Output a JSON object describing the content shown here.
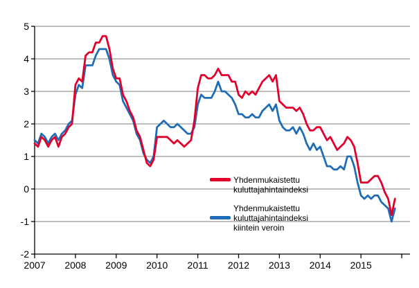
{
  "chart_data": {
    "type": "line",
    "title": "",
    "xlabel": "",
    "ylabel": "",
    "x_start": "2007-01",
    "x_end": "2015-11",
    "x_frequency": "monthly",
    "x_tick_labels": [
      "2007",
      "2008",
      "2009",
      "2010",
      "2011",
      "2012",
      "2013",
      "2014",
      "2015"
    ],
    "y_tick_labels": [
      "5",
      "4",
      "3",
      "2",
      "1",
      "0",
      "-1",
      "-2"
    ],
    "y_ticks": [
      5,
      4,
      3,
      2,
      1,
      0,
      -1,
      -2
    ],
    "ylim": [
      -2,
      5
    ],
    "grid": true,
    "gridline_color": "#7f7f7f",
    "axis_color": "#000000",
    "legend_position": "inside-lower-center",
    "series": [
      {
        "id": "hicp",
        "name": "Yhdenmukaistettu kuluttajahintaindeksi",
        "color": "#e2002b",
        "values": [
          1.4,
          1.3,
          1.6,
          1.5,
          1.3,
          1.5,
          1.6,
          1.3,
          1.6,
          1.7,
          1.9,
          2.0,
          3.2,
          3.4,
          3.3,
          4.1,
          4.2,
          4.2,
          4.5,
          4.5,
          4.7,
          4.7,
          4.3,
          3.7,
          3.4,
          3.4,
          2.9,
          2.7,
          2.4,
          2.2,
          1.8,
          1.6,
          1.2,
          0.8,
          0.7,
          0.9,
          1.6,
          1.6,
          1.6,
          1.6,
          1.5,
          1.4,
          1.5,
          1.4,
          1.3,
          1.4,
          1.5,
          2.1,
          3.1,
          3.5,
          3.5,
          3.4,
          3.4,
          3.5,
          3.7,
          3.5,
          3.5,
          3.5,
          3.3,
          3.3,
          2.9,
          2.8,
          3.0,
          2.9,
          3.0,
          2.9,
          3.1,
          3.3,
          3.4,
          3.5,
          3.3,
          3.5,
          2.7,
          2.6,
          2.5,
          2.5,
          2.5,
          2.4,
          2.5,
          2.3,
          2.0,
          1.8,
          1.8,
          1.9,
          1.9,
          1.7,
          1.5,
          1.6,
          1.4,
          1.2,
          1.3,
          1.4,
          1.6,
          1.5,
          1.3,
          0.8,
          0.2,
          0.2,
          0.2,
          0.3,
          0.4,
          0.4,
          0.2,
          -0.1,
          -0.3,
          -0.8,
          -0.3
        ]
      },
      {
        "id": "hicp-constant-taxes",
        "name": "Yhdenmukaistettu kuluttajahintaindeksi kiintein veroin",
        "color": "#1f6db6",
        "values": [
          1.5,
          1.4,
          1.7,
          1.6,
          1.4,
          1.6,
          1.7,
          1.5,
          1.7,
          1.8,
          2.0,
          2.1,
          2.9,
          3.2,
          3.1,
          3.8,
          3.8,
          3.8,
          4.1,
          4.3,
          4.3,
          4.3,
          4.0,
          3.5,
          3.3,
          3.2,
          2.7,
          2.5,
          2.3,
          2.1,
          1.7,
          1.5,
          1.1,
          0.9,
          0.8,
          1.0,
          1.9,
          2.0,
          2.1,
          2.0,
          1.9,
          1.9,
          2.0,
          1.9,
          1.8,
          1.7,
          1.7,
          1.9,
          2.6,
          2.9,
          2.8,
          2.8,
          2.8,
          3.0,
          3.3,
          3.0,
          3.0,
          2.9,
          2.8,
          2.6,
          2.3,
          2.3,
          2.2,
          2.2,
          2.3,
          2.2,
          2.2,
          2.4,
          2.5,
          2.6,
          2.4,
          2.6,
          2.1,
          1.9,
          1.8,
          1.8,
          1.9,
          1.7,
          1.9,
          1.7,
          1.4,
          1.2,
          1.4,
          1.2,
          1.3,
          1.0,
          0.7,
          0.7,
          0.6,
          0.6,
          0.7,
          0.6,
          1.0,
          1.0,
          0.7,
          0.2,
          -0.2,
          -0.3,
          -0.2,
          -0.3,
          -0.2,
          -0.2,
          -0.4,
          -0.5,
          -0.6,
          -1.0,
          -0.6
        ]
      }
    ]
  },
  "legend": {
    "items": [
      {
        "id": "hicp",
        "lines": [
          "Yhdenmukaistettu",
          "kuluttajahintaindeksi"
        ]
      },
      {
        "id": "hicp-constant-taxes",
        "lines": [
          "Yhdenmukaistettu",
          "kuluttajahintaindeksi",
          "kiintein veroin"
        ]
      }
    ]
  }
}
